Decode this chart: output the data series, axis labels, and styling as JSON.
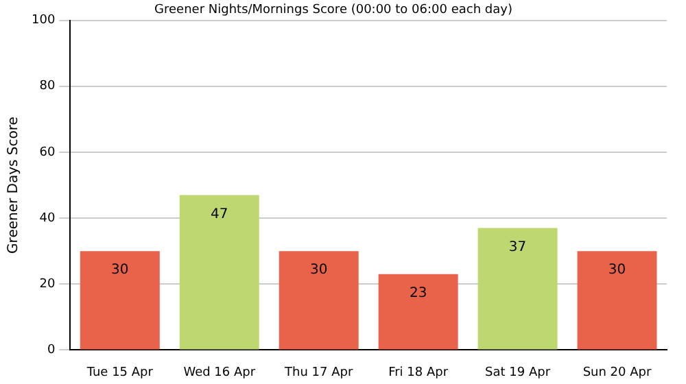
{
  "chart_data": {
    "type": "bar",
    "title": "Greener Nights/Mornings Score (00:00 to 06:00 each day)",
    "ylabel": "Greener Days Score",
    "categories": [
      "Tue 15 Apr",
      "Wed 16 Apr",
      "Thu 17 Apr",
      "Fri 18 Apr",
      "Sat 19 Apr",
      "Sun 20 Apr"
    ],
    "values": [
      30,
      47,
      30,
      23,
      37,
      30
    ],
    "colors": [
      "#e8634a",
      "#bfd771",
      "#e8634a",
      "#e8634a",
      "#bfd771",
      "#e8634a"
    ],
    "ylim": [
      0,
      100
    ],
    "yticks": [
      0,
      20,
      40,
      60,
      80,
      100
    ],
    "grid": "y",
    "data_labels": true,
    "legend": false
  }
}
